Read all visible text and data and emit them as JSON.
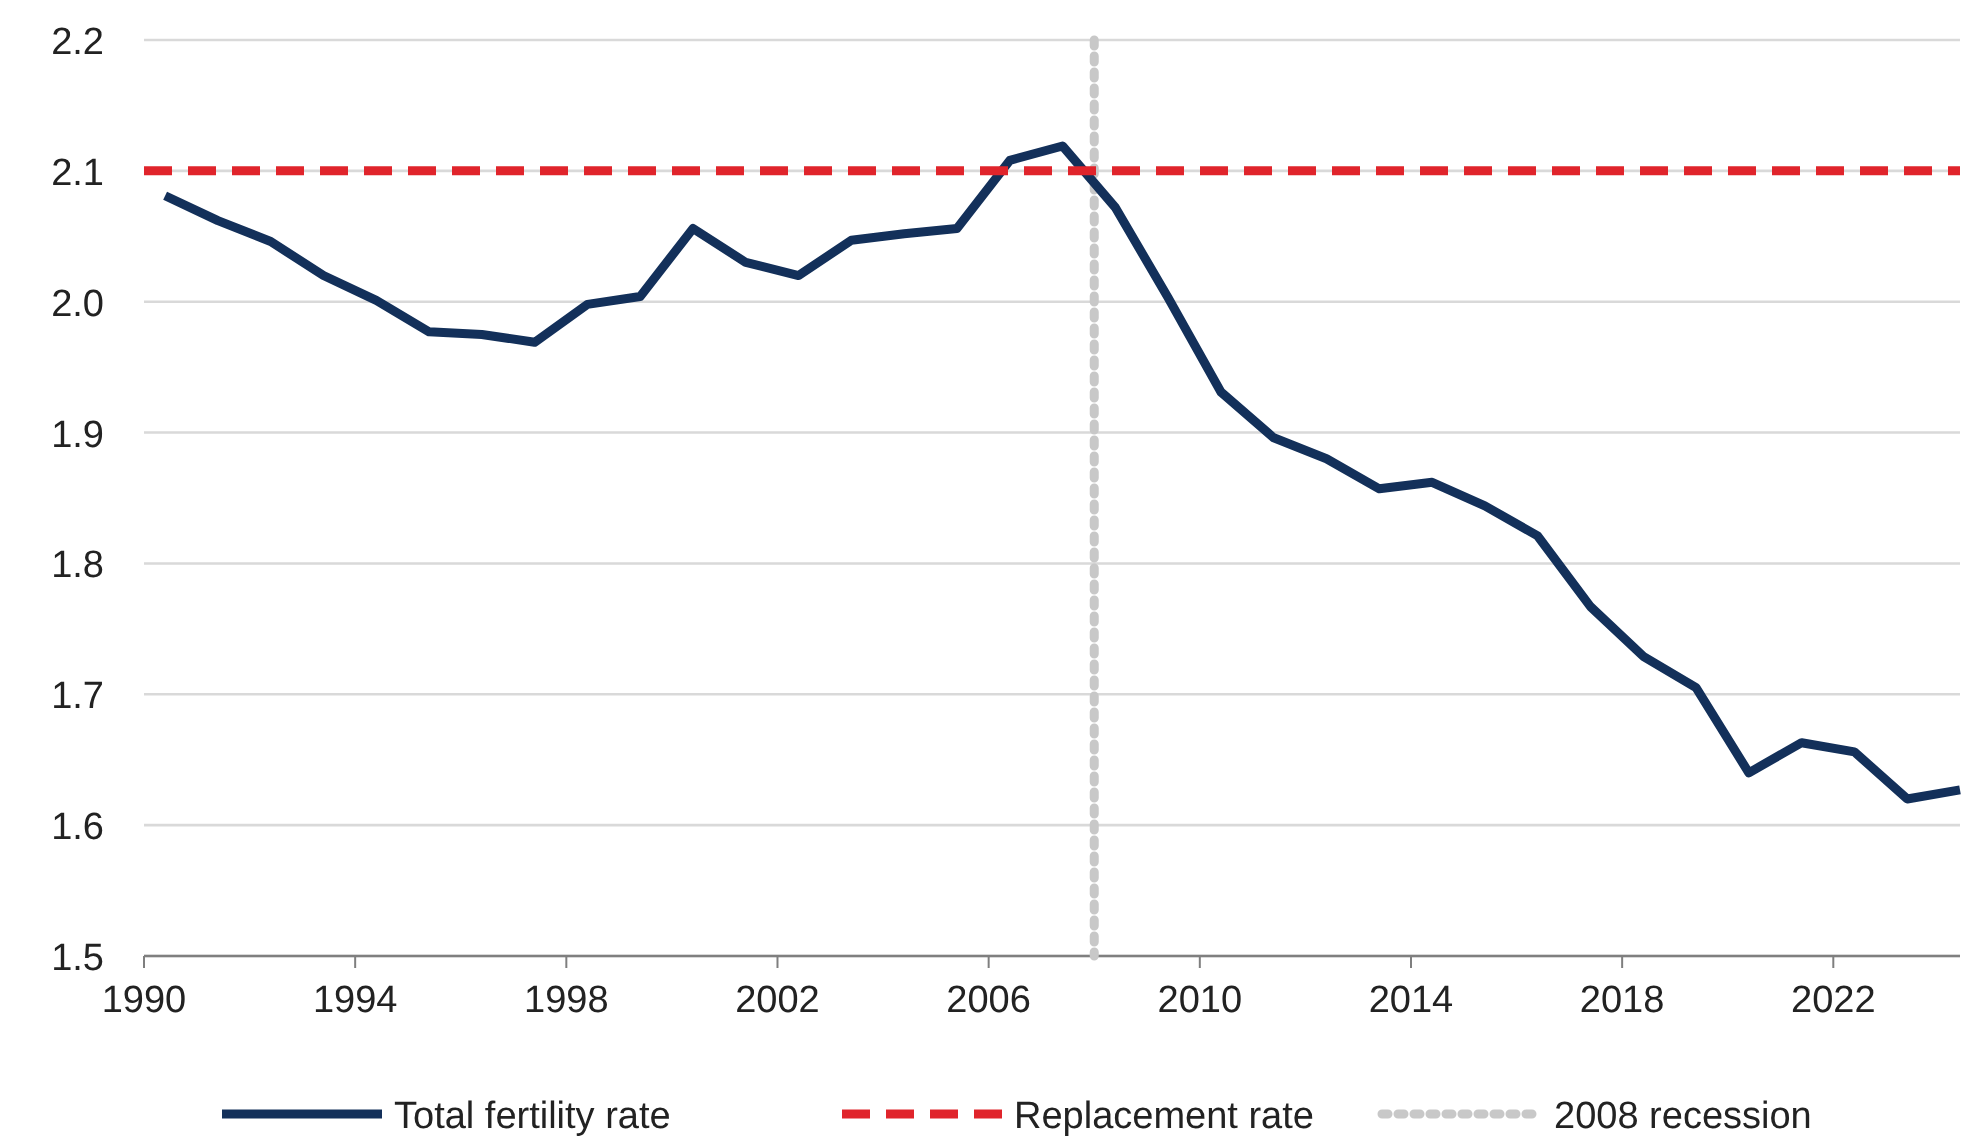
{
  "chart_data": {
    "type": "line",
    "x": [
      1990.4,
      1991.4,
      1992.4,
      1993.4,
      1994.4,
      1995.4,
      1996.4,
      1997.4,
      1998.4,
      1999.4,
      2000.4,
      2001.4,
      2002.4,
      2003.4,
      2004.4,
      2005.4,
      2006.4,
      2007.4,
      2008.4,
      2009.4,
      2010.4,
      2011.4,
      2012.4,
      2013.4,
      2014.4,
      2015.4,
      2016.4,
      2017.4,
      2018.4,
      2019.4,
      2020.4,
      2021.4,
      2022.4,
      2023.4,
      2024.4
    ],
    "series": [
      {
        "name": "Total fertility rate",
        "color": "#13305a",
        "values": [
          2.081,
          2.062,
          2.046,
          2.02,
          2.001,
          1.977,
          1.975,
          1.969,
          1.998,
          2.004,
          2.056,
          2.03,
          2.02,
          2.047,
          2.052,
          2.056,
          2.108,
          2.119,
          2.072,
          2.003,
          1.931,
          1.896,
          1.88,
          1.857,
          1.862,
          1.844,
          1.821,
          1.767,
          1.729,
          1.705,
          1.64,
          1.663,
          1.656,
          1.62,
          1.627
        ]
      }
    ],
    "ref_lines": [
      {
        "axis": "y",
        "value": 2.1,
        "label": "Replacement rate",
        "color": "#e0242b",
        "line_style": "dashed"
      },
      {
        "axis": "x",
        "value": 2008,
        "label": "2008 recession",
        "color": "#c8c8c8",
        "line_style": "dotted"
      }
    ],
    "xlim": [
      1990,
      2024.4
    ],
    "xticks": [
      1990,
      1994,
      1998,
      2002,
      2006,
      2010,
      2014,
      2018,
      2022
    ],
    "ylim": [
      1.5,
      2.2
    ],
    "yticks": [
      {
        "value": 1.5,
        "label": "1.5"
      },
      {
        "value": 1.6,
        "label": "1.6"
      },
      {
        "value": 1.7,
        "label": "1.7"
      },
      {
        "value": 1.8,
        "label": "1.8"
      },
      {
        "value": 1.9,
        "label": "1.9"
      },
      {
        "value": 2.0,
        "label": "2.0"
      },
      {
        "value": 2.1,
        "label": "2.1"
      },
      {
        "value": 2.2,
        "label": "2.2"
      }
    ],
    "grid": "y",
    "legend": "bottom",
    "line_style": "solid",
    "marker": "none"
  }
}
